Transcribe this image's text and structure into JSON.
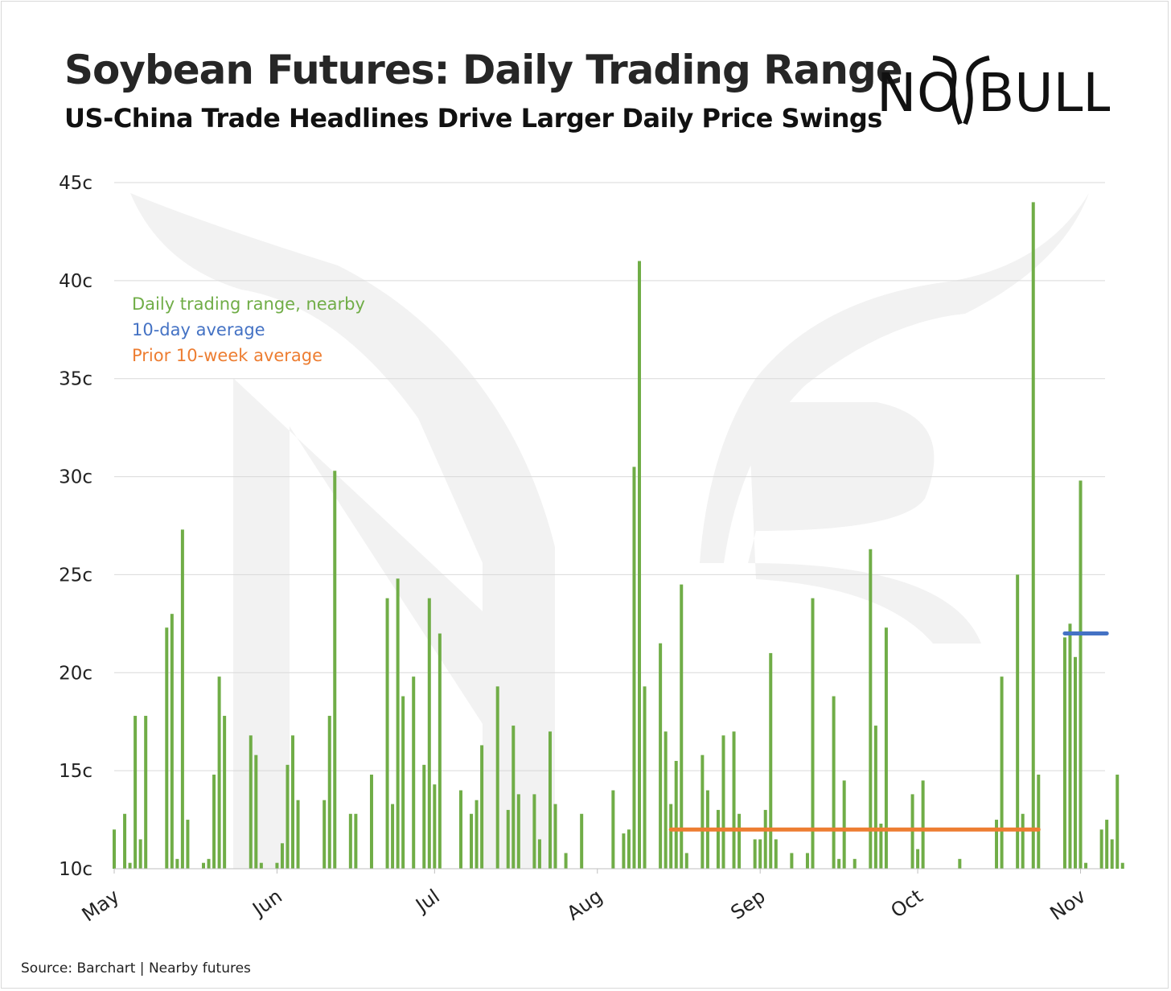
{
  "title": "Soybean Futures: Daily Trading Range",
  "subtitle": "US-China Trade Headlines Drive Larger Daily Price Swings",
  "logo_text": "NO BULL",
  "source": "Source: Barchart | Nearby futures",
  "colors": {
    "bars": "#70ad47",
    "ten_day": "#4472c4",
    "prior_avg": "#ed7d31",
    "grid": "#d9d9d9",
    "watermark": "#f2f2f2"
  },
  "legend": {
    "bars_label": "Daily trading range, nearby",
    "ten_day_label": "10-day average",
    "prior_label": "Prior 10-week average"
  },
  "chart_data": {
    "type": "bar",
    "date_range": [
      "2019-05-01",
      "2019-11-06"
    ],
    "ylim": [
      10,
      45
    ],
    "ytick_values": [
      10,
      15,
      20,
      25,
      30,
      35,
      40,
      45
    ],
    "ytick_labels": [
      "10c",
      "15c",
      "20c",
      "25c",
      "30c",
      "35c",
      "40c",
      "45c"
    ],
    "xticks": [
      {
        "date": "2019-05-01",
        "label": "May"
      },
      {
        "date": "2019-06-01",
        "label": "Jun"
      },
      {
        "date": "2019-07-01",
        "label": "Jul"
      },
      {
        "date": "2019-08-01",
        "label": "Aug"
      },
      {
        "date": "2019-09-01",
        "label": "Sep"
      },
      {
        "date": "2019-10-01",
        "label": "Oct"
      },
      {
        "date": "2019-11-01",
        "label": "Nov"
      }
    ],
    "grid": true,
    "legend_position": "top-left",
    "series": [
      {
        "name": "Daily trading range, nearby",
        "dates": [
          "2019-05-01",
          "2019-05-03",
          "2019-05-04",
          "2019-05-05",
          "2019-05-06",
          "2019-05-07",
          "2019-05-11",
          "2019-05-12",
          "2019-05-13",
          "2019-05-14",
          "2019-05-15",
          "2019-05-18",
          "2019-05-19",
          "2019-05-20",
          "2019-05-21",
          "2019-05-22",
          "2019-05-27",
          "2019-05-28",
          "2019-05-29",
          "2019-06-01",
          "2019-06-02",
          "2019-06-03",
          "2019-06-04",
          "2019-06-05",
          "2019-06-10",
          "2019-06-11",
          "2019-06-12",
          "2019-06-15",
          "2019-06-16",
          "2019-06-19",
          "2019-06-22",
          "2019-06-23",
          "2019-06-24",
          "2019-06-25",
          "2019-06-27",
          "2019-06-29",
          "2019-06-30",
          "2019-07-01",
          "2019-07-02",
          "2019-07-06",
          "2019-07-08",
          "2019-07-09",
          "2019-07-10",
          "2019-07-13",
          "2019-07-15",
          "2019-07-16",
          "2019-07-17",
          "2019-07-20",
          "2019-07-21",
          "2019-07-23",
          "2019-07-24",
          "2019-07-26",
          "2019-07-29",
          "2019-08-04",
          "2019-08-06",
          "2019-08-07",
          "2019-08-08",
          "2019-08-09",
          "2019-08-10",
          "2019-08-13",
          "2019-08-14",
          "2019-08-15",
          "2019-08-16",
          "2019-08-17",
          "2019-08-18",
          "2019-08-21",
          "2019-08-22",
          "2019-08-24",
          "2019-08-25",
          "2019-08-27",
          "2019-08-28",
          "2019-08-31",
          "2019-09-01",
          "2019-09-02",
          "2019-09-03",
          "2019-09-04",
          "2019-09-07",
          "2019-09-10",
          "2019-09-11",
          "2019-09-15",
          "2019-09-16",
          "2019-09-17",
          "2019-09-19",
          "2019-09-22",
          "2019-09-23",
          "2019-09-24",
          "2019-09-25",
          "2019-09-30",
          "2019-10-01",
          "2019-10-02",
          "2019-10-09",
          "2019-10-16",
          "2019-10-17",
          "2019-10-20",
          "2019-10-21",
          "2019-10-23",
          "2019-10-24",
          "2019-10-29",
          "2019-10-30",
          "2019-10-31",
          "2019-11-01",
          "2019-11-02",
          "2019-11-05",
          "2019-11-06",
          "2019-11-07",
          "2019-11-08",
          "2019-11-09"
        ],
        "values": [
          12.0,
          12.8,
          10.3,
          17.8,
          11.5,
          17.8,
          22.3,
          23.0,
          10.5,
          27.3,
          12.5,
          10.3,
          10.5,
          14.8,
          19.8,
          17.8,
          16.8,
          15.8,
          10.3,
          10.3,
          11.3,
          15.3,
          16.8,
          13.5,
          13.5,
          17.8,
          30.3,
          12.8,
          12.8,
          14.8,
          23.8,
          13.3,
          24.8,
          18.8,
          19.8,
          15.3,
          23.8,
          14.3,
          22.0,
          14.0,
          12.8,
          13.5,
          16.3,
          19.3,
          13.0,
          17.3,
          13.8,
          13.8,
          11.5,
          17.0,
          13.3,
          10.8,
          12.8,
          14.0,
          11.8,
          12.0,
          30.5,
          41.0,
          19.3,
          21.5,
          17.0,
          13.3,
          15.5,
          24.5,
          10.8,
          15.8,
          14.0,
          13.0,
          16.8,
          17.0,
          12.8,
          11.5,
          11.5,
          13.0,
          21.0,
          11.5,
          10.8,
          10.8,
          23.8,
          18.8,
          10.5,
          14.5,
          10.5,
          26.3,
          17.3,
          12.3,
          22.3,
          13.8,
          11.0,
          14.5,
          10.5,
          12.5,
          19.8,
          25.0,
          12.8,
          44.0,
          14.8,
          21.8,
          22.5,
          20.8,
          29.8,
          10.3,
          12.0,
          12.5,
          11.5,
          14.8,
          10.3
        ]
      },
      {
        "name": "10-day average",
        "segment": [
          "2019-10-29",
          "2019-11-06"
        ],
        "value": 22.0
      },
      {
        "name": "Prior 10-week average",
        "segment": [
          "2019-08-15",
          "2019-10-24"
        ],
        "value": 12.0
      }
    ]
  }
}
